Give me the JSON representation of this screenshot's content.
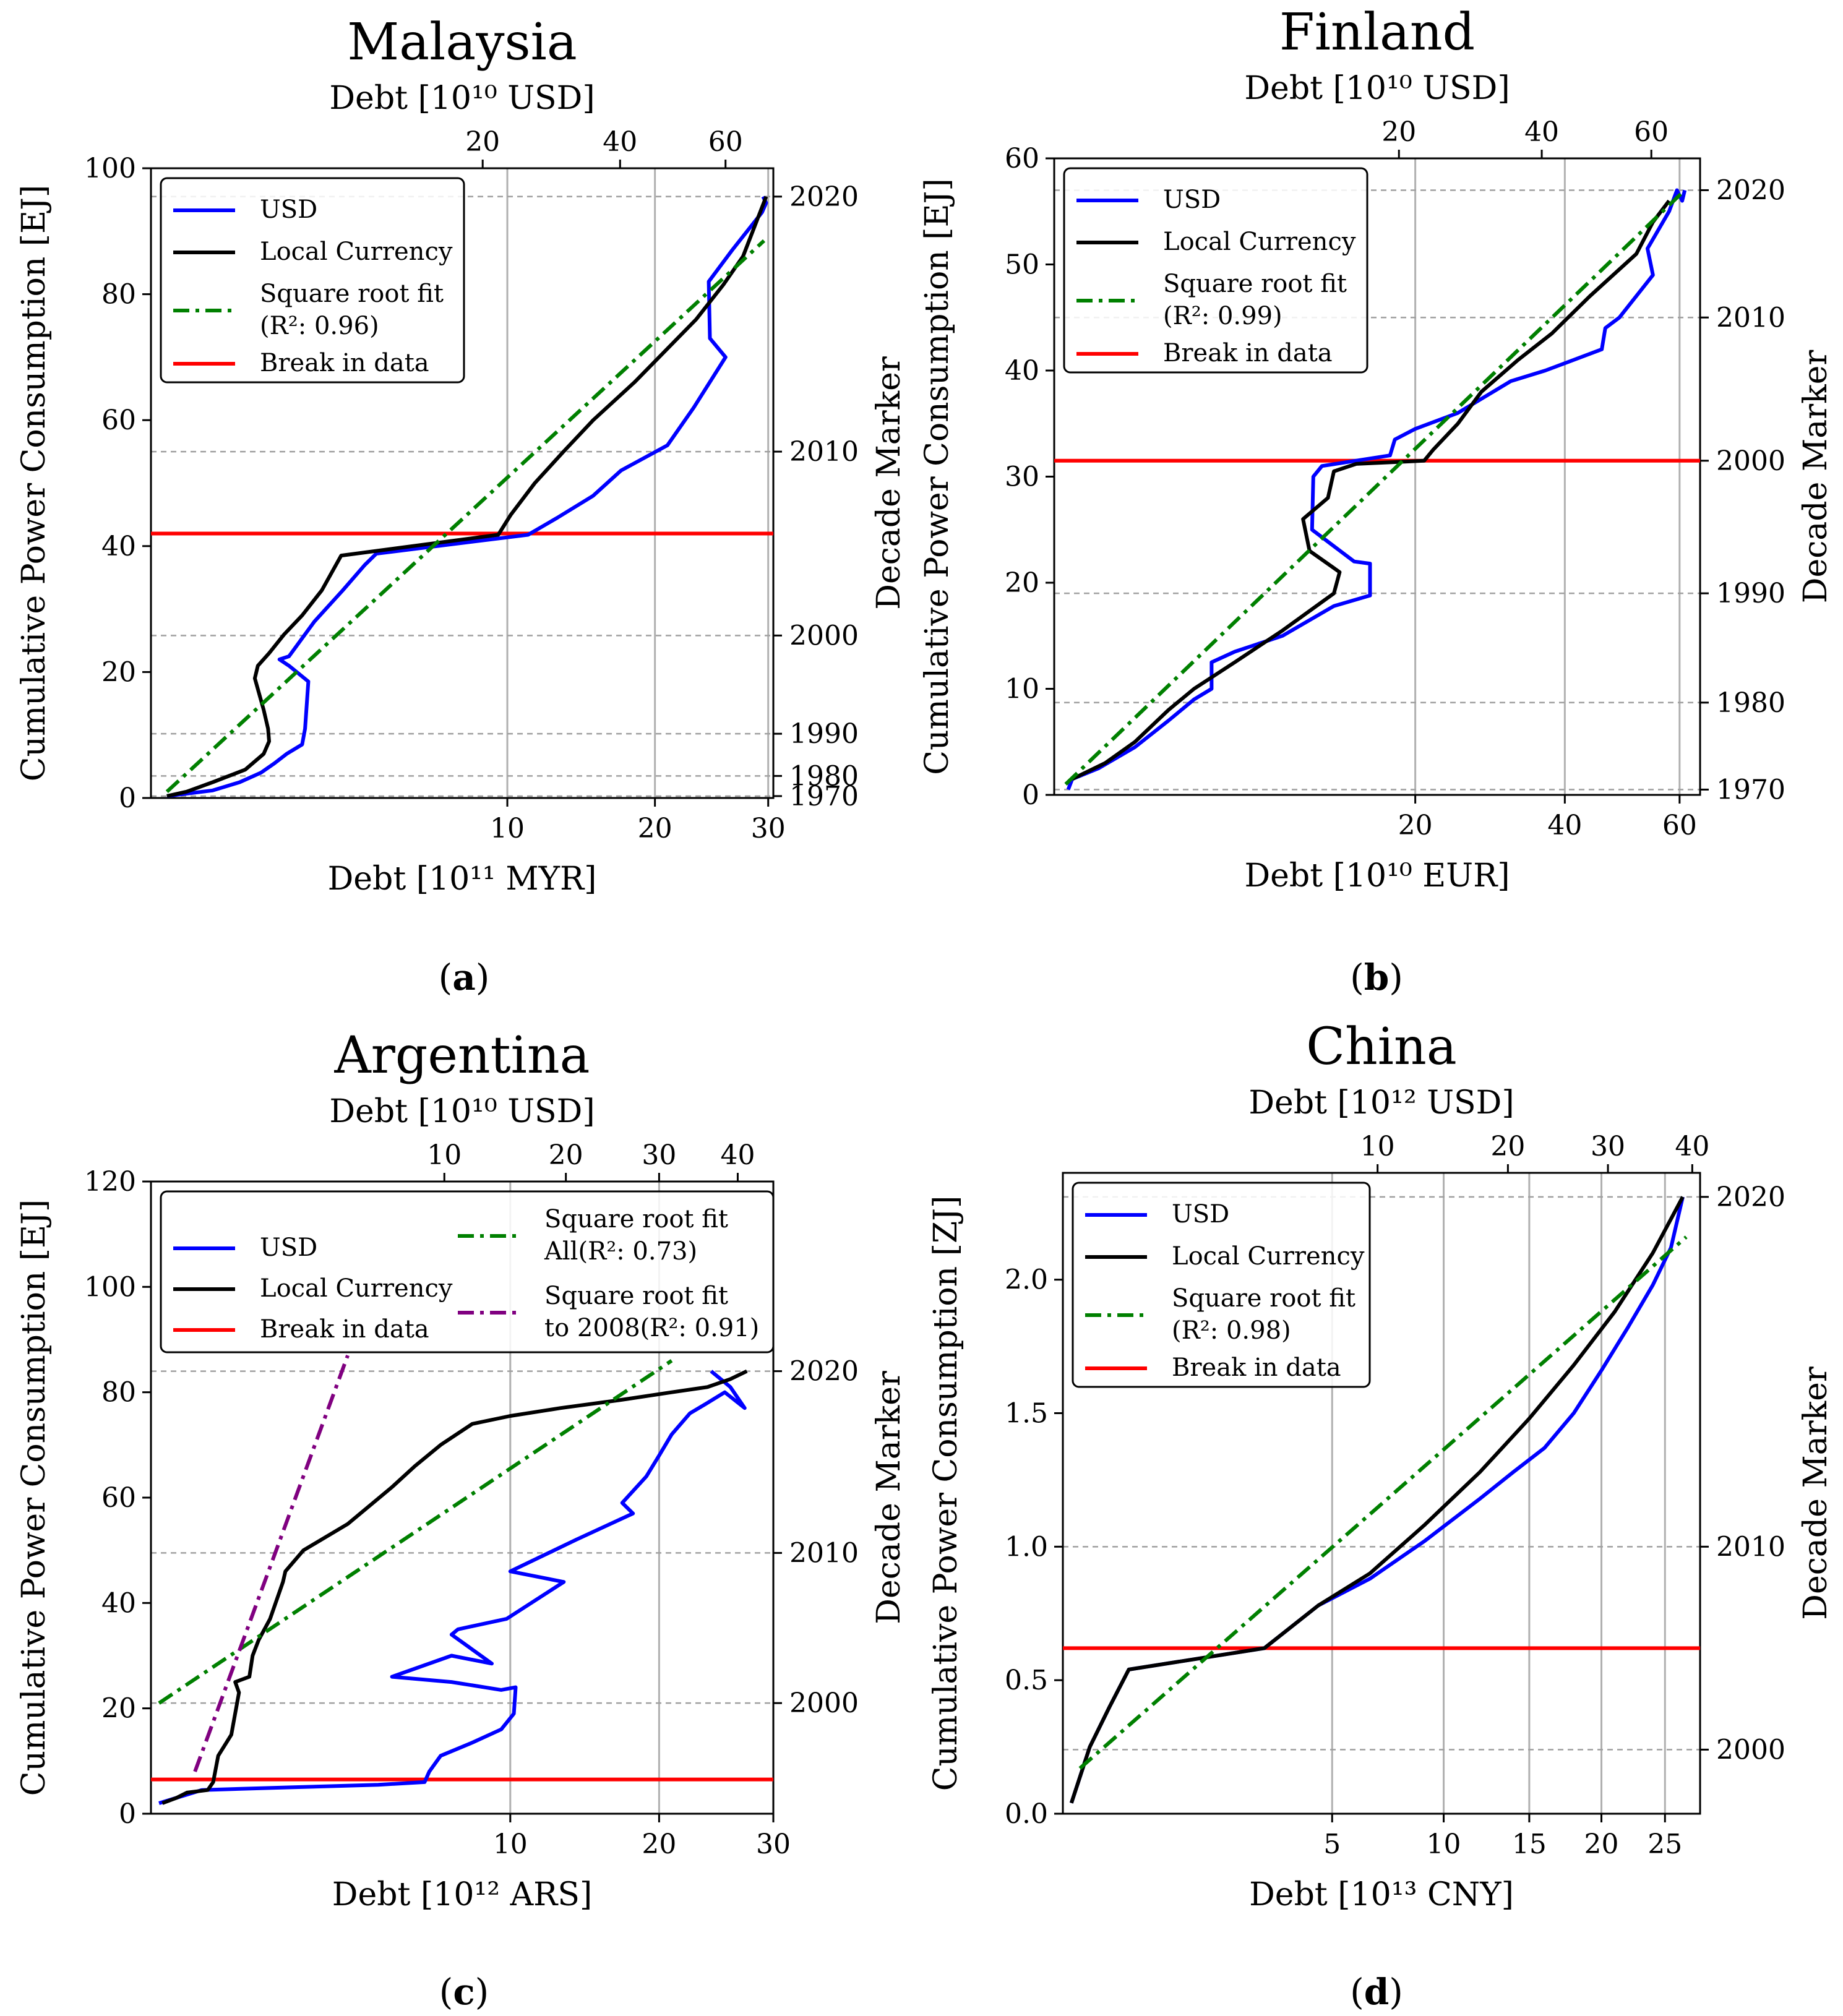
{
  "colors": {
    "usd": "#0000ff",
    "local": "#000000",
    "fit": "#008000",
    "fit2008": "#800080",
    "break": "#ff0000",
    "grid": "#b0b0b0",
    "decade": "#a0a0a0"
  },
  "chart_data": [
    {
      "tag": "(a)",
      "tag_letter": "a",
      "type": "line",
      "title": "Malaysia",
      "top_xlabel": "Debt [10¹⁰ USD]",
      "xlabel": "Debt [10¹¹ MYR]",
      "ylabel": "Cumulative Power Consumption [EJ]",
      "y2label": "Decade Marker",
      "scale": "sqrt",
      "xlim": [
        0,
        30.5
      ],
      "ylim": [
        0,
        100
      ],
      "x_ticks": [
        10,
        20,
        30
      ],
      "top_xlim": [
        0,
        70.4
      ],
      "top_ticks": [
        20,
        40,
        60
      ],
      "y_ticks": [
        0,
        20,
        40,
        60,
        80,
        100
      ],
      "decades": [
        {
          "label": "1970",
          "y": 0.3
        },
        {
          "label": "1980",
          "y": 3.5
        },
        {
          "label": "1990",
          "y": 10.2
        },
        {
          "label": "2000",
          "y": 25.8
        },
        {
          "label": "2010",
          "y": 55
        },
        {
          "label": "2020",
          "y": 95.5
        }
      ],
      "break_y": 42,
      "legend_position": "upper-left",
      "legend": [
        {
          "key": "usd",
          "label": "USD"
        },
        {
          "key": "local",
          "label": "Local Currency"
        },
        {
          "key": "fit",
          "label": "Square root fit",
          "label2": "(R²: 0.96)"
        },
        {
          "key": "break",
          "label": "Break in data"
        }
      ],
      "series": [
        {
          "key": "usd",
          "name": "USD",
          "x": [
            0.02,
            0.3,
            0.62,
            0.95,
            1.2,
            1.45,
            1.8,
            1.87,
            1.95,
            1.5,
            1.3,
            1.5,
            2.1,
            2.9,
            3.6,
            4.0,
            11.2,
            13.0,
            15.4,
            17.4,
            21.0,
            23.2,
            26.0,
            24.6,
            24.5,
            26.6,
            29.4,
            29.8,
            29.5
          ],
          "y": [
            0.3,
            1.2,
            2.5,
            4,
            5.5,
            7,
            8.5,
            11,
            18.5,
            21,
            22,
            22.5,
            28,
            33,
            37,
            38.8,
            41.8,
            44.5,
            48,
            52,
            56,
            62,
            70,
            73,
            82,
            87,
            93,
            94.5,
            95.5
          ]
        },
        {
          "key": "local",
          "name": "Local Currency",
          "x": [
            0.02,
            0.1,
            0.3,
            0.7,
            1.0,
            1.1,
            1.08,
            1.0,
            0.85,
            0.9,
            1.1,
            1.4,
            1.8,
            2.3,
            2.85,
            9.5,
            10.2,
            11.6,
            13.4,
            15.4,
            18.4,
            23.4,
            25.8,
            27.6,
            29.8
          ],
          "y": [
            0.3,
            1,
            2.5,
            4.5,
            7,
            9,
            11,
            14,
            19,
            21,
            23,
            26,
            29,
            33,
            38.5,
            41.8,
            45,
            50,
            55,
            60,
            66,
            76,
            81.5,
            86,
            95.5
          ]
        },
        {
          "key": "fit",
          "name": "Square root fit",
          "x": [
            0.02,
            29.6
          ],
          "y": [
            1,
            88.5
          ]
        }
      ]
    },
    {
      "tag": "(b)",
      "tag_letter": "b",
      "type": "line",
      "title": "Finland",
      "top_xlabel": "Debt [10¹⁰ USD]",
      "xlabel": "Debt [10¹⁰ EUR]",
      "ylabel": "Cumulative Power Consumption [EJ]",
      "y2label": "Decade Marker",
      "scale": "sqrt",
      "xlim": [
        0,
        64
      ],
      "ylim": [
        0,
        60
      ],
      "x_ticks": [
        20,
        40,
        60
      ],
      "top_xlim": [
        0,
        70.2
      ],
      "top_ticks": [
        20,
        40,
        60
      ],
      "y_ticks": [
        0,
        10,
        20,
        30,
        40,
        50,
        60
      ],
      "decades": [
        {
          "label": "1970",
          "y": 0.5
        },
        {
          "label": "1980",
          "y": 8.7
        },
        {
          "label": "1990",
          "y": 19
        },
        {
          "label": "2000",
          "y": 31.5
        },
        {
          "label": "2010",
          "y": 45
        },
        {
          "label": "2020",
          "y": 57
        }
      ],
      "break_y": 31.5,
      "legend_position": "upper-left",
      "legend": [
        {
          "key": "usd",
          "label": "USD"
        },
        {
          "key": "local",
          "label": "Local Currency"
        },
        {
          "key": "fit",
          "label": "Square root fit",
          "label2": "(R²: 0.99)"
        },
        {
          "key": "break",
          "label": "Break in data"
        }
      ],
      "series": [
        {
          "key": "usd",
          "name": "USD",
          "x": [
            0.03,
            0.05,
            0.3,
            1.0,
            2.0,
            3.0,
            3.8,
            3.8,
            5.0,
            8.0,
            12.0,
            15.3,
            15.3,
            13.8,
            10.2,
            10.3,
            11.0,
            17.3,
            17.8,
            20.0,
            25.0,
            32.0,
            37.0,
            46.0,
            46.6,
            49.0,
            55.0,
            54.0,
            58.0,
            59.5,
            60.5,
            61.0
          ],
          "y": [
            0.5,
            1.5,
            2.5,
            4.5,
            7,
            9,
            10,
            12.5,
            13.5,
            15,
            17.8,
            18.8,
            21.8,
            22,
            25,
            30,
            31,
            32,
            33.5,
            34.5,
            36,
            39,
            40,
            42,
            44,
            45,
            49,
            51.5,
            55,
            57,
            56,
            57
          ]
        },
        {
          "key": "local",
          "name": "Local Currency",
          "x": [
            0.05,
            0.4,
            1.0,
            2.0,
            3.0,
            5.0,
            8.0,
            12.0,
            12.5,
            10.0,
            9.5,
            11.5,
            12.0,
            14.0,
            21.0,
            22.0,
            25.0,
            28.0,
            33.0,
            38.0,
            44.0,
            52.0,
            55.0,
            58.0
          ],
          "y": [
            1.5,
            3,
            5,
            8,
            10,
            12.5,
            15.5,
            19,
            21,
            23,
            26,
            28,
            30.5,
            31.2,
            31.5,
            32.5,
            35,
            38,
            41,
            43.5,
            47,
            51,
            54,
            56
          ]
        },
        {
          "key": "fit",
          "name": "Square root fit",
          "x": [
            0.02,
            61.0
          ],
          "y": [
            1,
            57
          ]
        }
      ]
    },
    {
      "tag": "(c)",
      "tag_letter": "c",
      "type": "line",
      "title": "Argentina",
      "top_xlabel": "Debt [10¹⁰ USD]",
      "xlabel": "Debt [10¹² ARS]",
      "ylabel": "Cumulative Power Consumption [EJ]",
      "y2label": "Decade Marker",
      "scale": "sqrt",
      "xlim": [
        0,
        30
      ],
      "ylim": [
        0,
        120
      ],
      "x_ticks": [
        10,
        20,
        30
      ],
      "top_xlim": [
        0,
        45
      ],
      "top_ticks": [
        10,
        20,
        30,
        40
      ],
      "y_ticks": [
        0,
        20,
        40,
        60,
        80,
        100,
        120
      ],
      "decades": [
        {
          "label": "2000",
          "y": 21
        },
        {
          "label": "2010",
          "y": 49.5
        },
        {
          "label": "2020",
          "y": 84
        }
      ],
      "break_y": 6.5,
      "legend_position": "top",
      "legend": [
        {
          "key": "usd",
          "label": "USD"
        },
        {
          "key": "local",
          "label": "Local Currency"
        },
        {
          "key": "break",
          "label": "Break in data"
        },
        {
          "key": "fit",
          "label": "Square root fit",
          "label2": "All(R²: 0.73)"
        },
        {
          "key": "fit2008",
          "label": "Square root fit",
          "label2": "to 2008(R²: 0.91)"
        }
      ],
      "series": [
        {
          "key": "usd",
          "name": "USD",
          "x": [
            0.005,
            0.05,
            0.2,
            1.5,
            4.0,
            5.8,
            6.0,
            6.5,
            8.0,
            9.5,
            10.2,
            10.3,
            9.5,
            7.0,
            4.5,
            7.0,
            9.0,
            7.0,
            7.3,
            9.8,
            13.2,
            10.0,
            14.0,
            18.0,
            17.2,
            19.0,
            20.0,
            21.0,
            22.5,
            24.0,
            25.5,
            27.3,
            26.0,
            24.3
          ],
          "y": [
            2,
            3,
            4.5,
            5,
            5.5,
            6,
            8,
            11,
            13.5,
            16,
            19,
            24,
            23.5,
            25,
            26,
            30,
            28.5,
            34,
            35,
            37,
            44,
            46,
            52,
            57,
            59,
            64,
            68,
            72,
            76,
            78,
            80,
            77,
            81,
            84
          ]
        },
        {
          "key": "local",
          "name": "Local Currency",
          "x": [
            0.01,
            0.05,
            0.1,
            0.25,
            0.3,
            0.35,
            0.5,
            0.6,
            0.55,
            0.75,
            0.8,
            0.9,
            1.1,
            1.35,
            1.4,
            1.8,
            3.0,
            4.5,
            5.4,
            6.5,
            8.0,
            10.0,
            13.0,
            17.0,
            21.0,
            24.0,
            26.0,
            27.5
          ],
          "y": [
            2,
            3,
            4,
            4.5,
            6,
            11,
            15,
            23,
            25,
            26,
            30,
            33,
            37,
            44,
            46,
            50,
            55,
            62,
            66,
            70,
            74,
            75.5,
            77,
            78.5,
            80,
            81,
            82.5,
            84
          ]
        },
        {
          "key": "fit",
          "name": "Square root fit All",
          "x": [
            0.005,
            21.0
          ],
          "y": [
            21,
            86
          ]
        },
        {
          "key": "fit2008",
          "name": "Square root fit to 2008",
          "x": [
            0.15,
            3.0
          ],
          "y": [
            8,
            87
          ]
        }
      ]
    },
    {
      "tag": "(d)",
      "tag_letter": "d",
      "type": "line",
      "title": "China",
      "top_xlabel": "Debt [10¹² USD]",
      "xlabel": "Debt [10¹³ CNY]",
      "ylabel": "Cumulative Power Consumption [ZJ]",
      "y2label": "Decade Marker",
      "scale": "sqrt",
      "xlim": [
        0,
        28
      ],
      "ylim": [
        0,
        2.4
      ],
      "x_ticks": [
        5,
        10,
        15,
        20,
        25
      ],
      "top_xlim": [
        0,
        41
      ],
      "top_ticks": [
        10,
        20,
        30,
        40
      ],
      "y_ticks": [
        0.0,
        0.5,
        1.0,
        1.5,
        2.0
      ],
      "decades": [
        {
          "label": "2000",
          "y": 0.24
        },
        {
          "label": "2010",
          "y": 1.0
        },
        {
          "label": "2020",
          "y": 2.31
        }
      ],
      "break_y": 0.62,
      "legend_position": "upper-left",
      "legend": [
        {
          "key": "usd",
          "label": "USD"
        },
        {
          "key": "local",
          "label": "Local Currency"
        },
        {
          "key": "fit",
          "label": "Square root fit",
          "label2": "(R²: 0.98)"
        },
        {
          "key": "break",
          "label": "Break in data"
        }
      ],
      "series": [
        {
          "key": "usd",
          "name": "USD",
          "x": [
            0.005,
            0.05,
            0.15,
            0.3,
            2.8,
            4.5,
            6.5,
            9.0,
            12.0,
            14.0,
            16.0,
            18.0,
            20.0,
            22.0,
            24.0,
            25.5,
            26.5
          ],
          "y": [
            0.04,
            0.25,
            0.4,
            0.54,
            0.62,
            0.78,
            0.88,
            1.02,
            1.18,
            1.28,
            1.37,
            1.5,
            1.66,
            1.82,
            1.98,
            2.12,
            2.31
          ]
        },
        {
          "key": "local",
          "name": "Local Currency",
          "x": [
            0.005,
            0.05,
            0.15,
            0.3,
            2.8,
            4.5,
            6.5,
            9.0,
            12.0,
            15.0,
            18.0,
            21.0,
            24.0,
            26.5
          ],
          "y": [
            0.04,
            0.25,
            0.4,
            0.54,
            0.62,
            0.78,
            0.9,
            1.08,
            1.28,
            1.48,
            1.68,
            1.88,
            2.1,
            2.31
          ]
        },
        {
          "key": "fit",
          "name": "Square root fit",
          "x": [
            0.02,
            26.8
          ],
          "y": [
            0.17,
            2.16
          ]
        }
      ]
    }
  ]
}
